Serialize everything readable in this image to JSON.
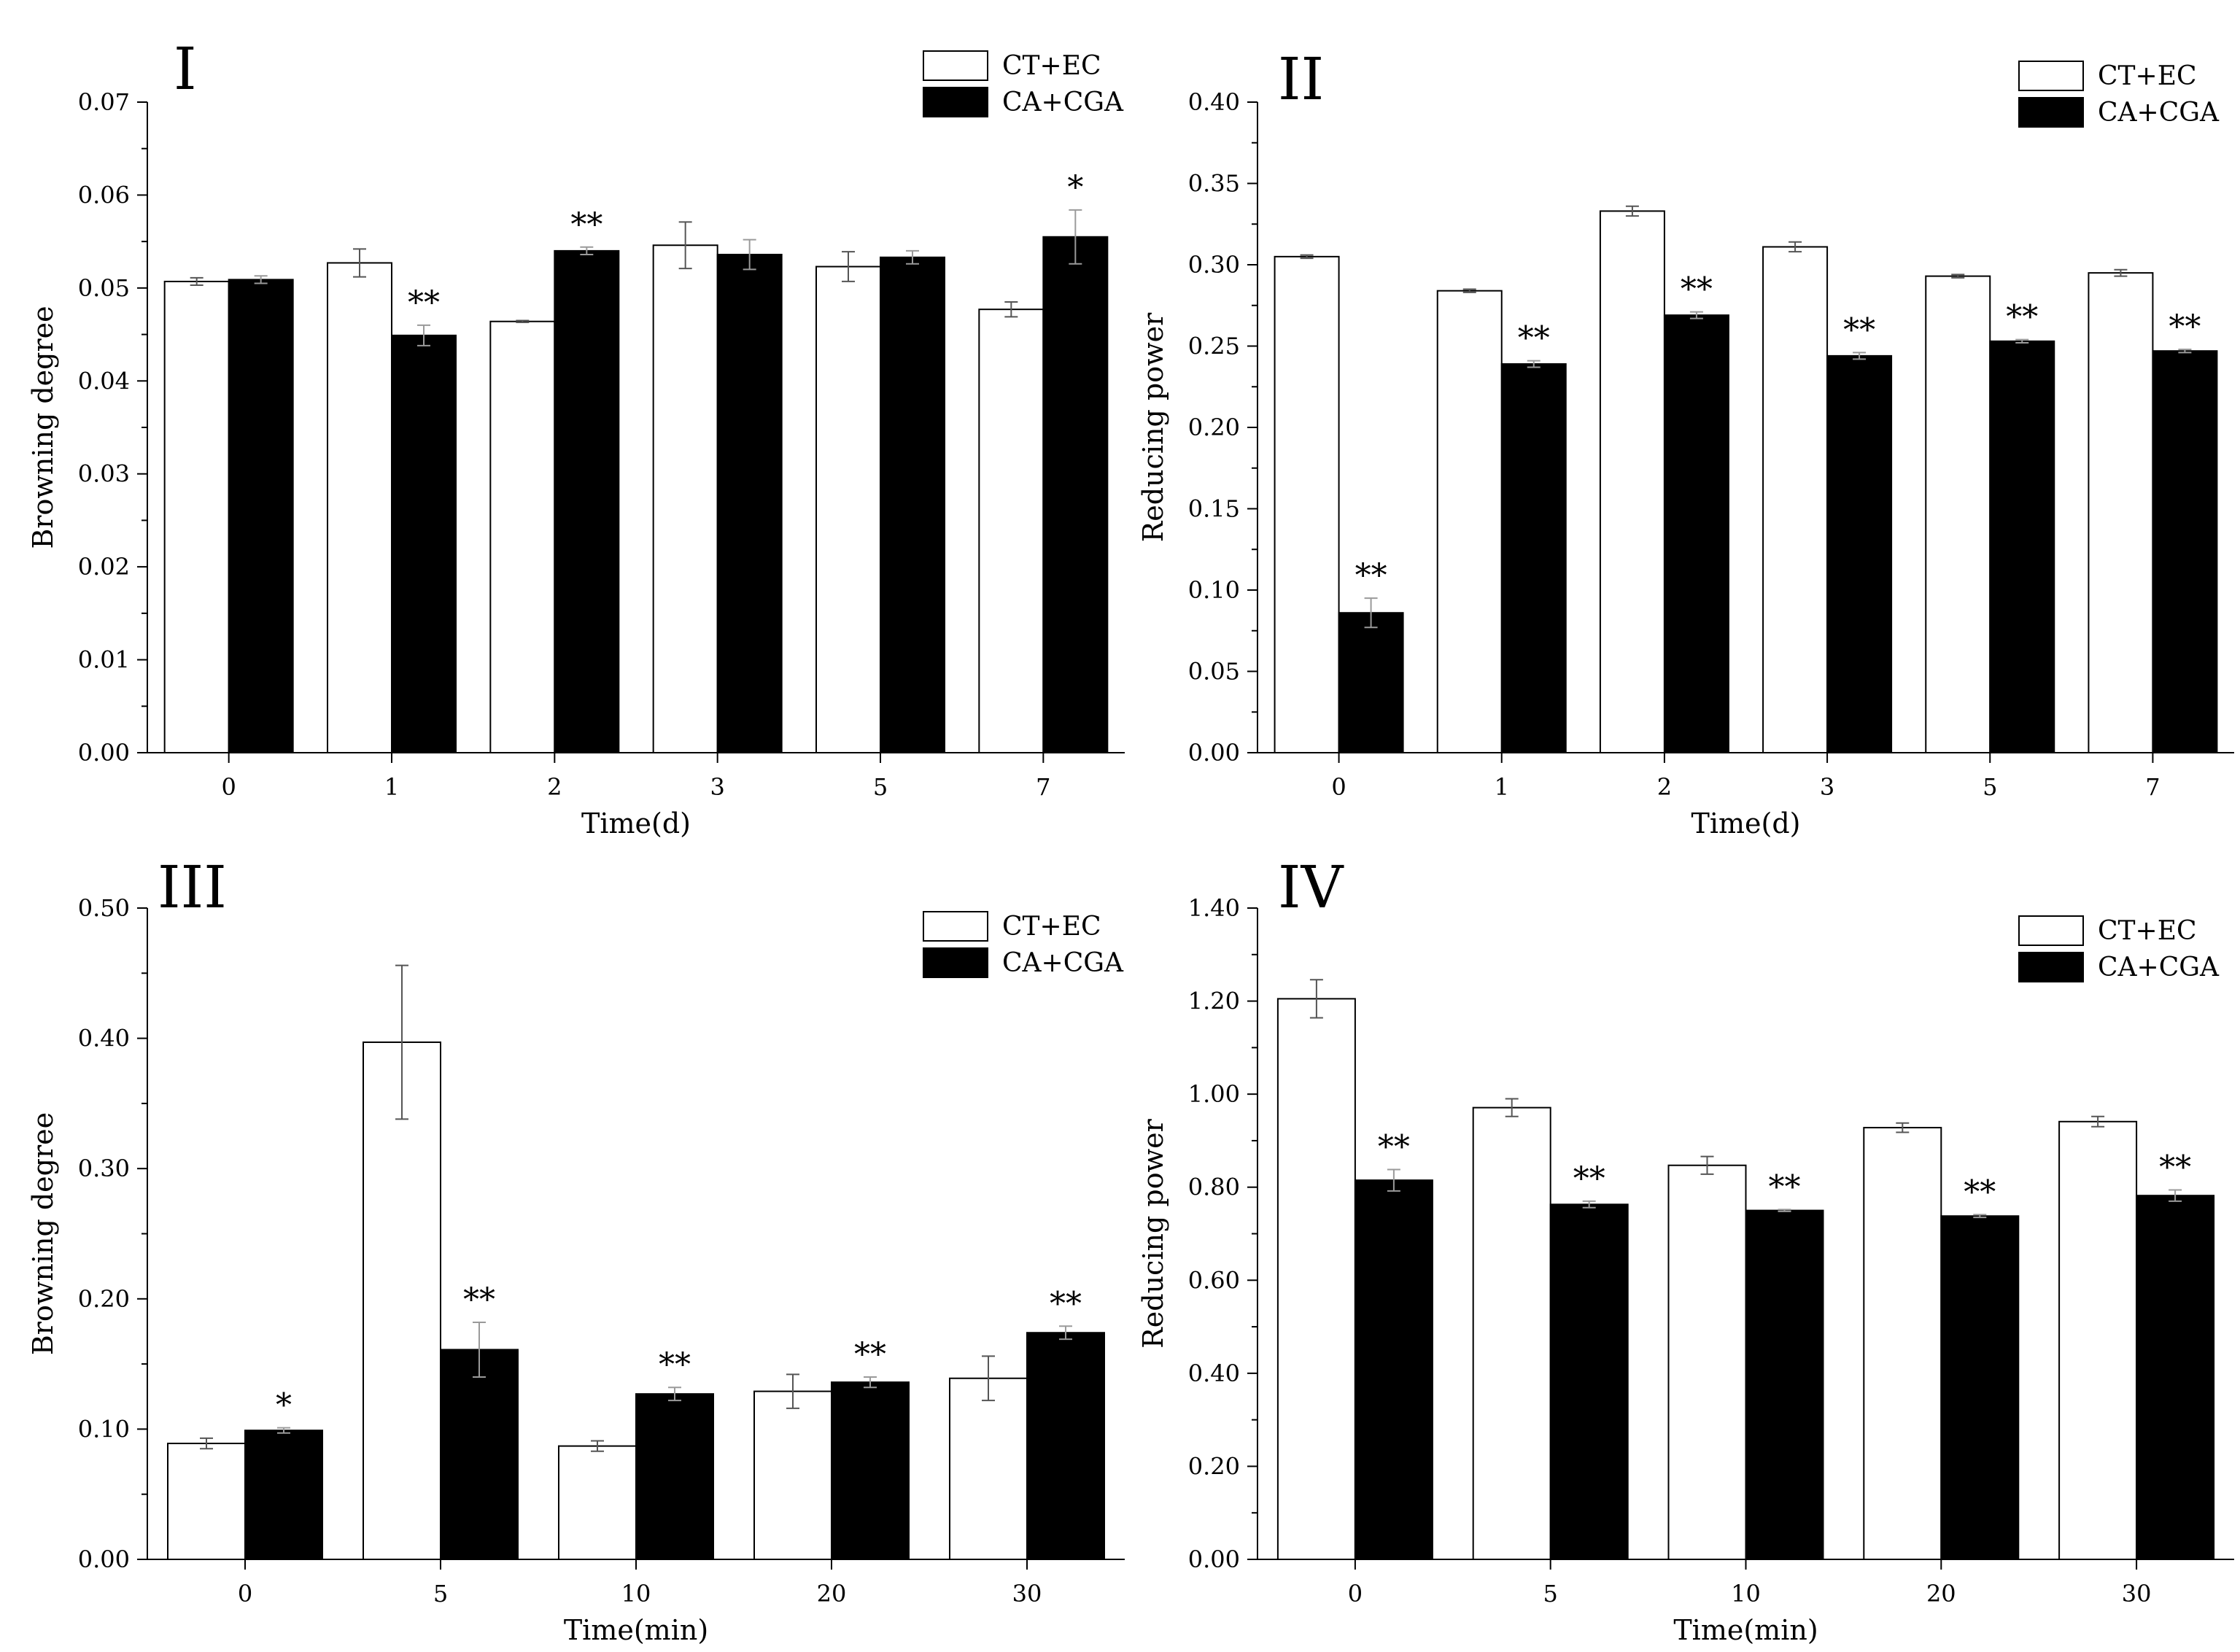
{
  "legend": [
    "CT+EC",
    "CA+CGA"
  ],
  "chart_data": [
    {
      "type": "bar",
      "panel_label": "I",
      "xlabel": "Time(d)",
      "ylabel": "Browning degree",
      "ylim": [
        0,
        0.07
      ],
      "yticks": [
        "0.00",
        "0.01",
        "0.02",
        "0.03",
        "0.04",
        "0.05",
        "0.06",
        "0.07"
      ],
      "categories": [
        "0",
        "1",
        "2",
        "3",
        "5",
        "7"
      ],
      "series": [
        {
          "name": "CT+EC",
          "values": [
            0.0507,
            0.0527,
            0.0464,
            0.0546,
            0.0523,
            0.0477
          ],
          "errors": [
            0.0004,
            0.0015,
            0.0001,
            0.0025,
            0.0016,
            0.0008
          ]
        },
        {
          "name": "CA+CGA",
          "values": [
            0.0509,
            0.0449,
            0.054,
            0.0536,
            0.0533,
            0.0555
          ],
          "errors": [
            0.0004,
            0.0011,
            0.0004,
            0.0016,
            0.0007,
            0.0029
          ]
        }
      ],
      "significance": [
        "",
        "**",
        "**",
        "",
        "",
        "*"
      ]
    },
    {
      "type": "bar",
      "panel_label": "II",
      "xlabel": "Time(d)",
      "ylabel": "Reducing power",
      "ylim": [
        0,
        0.4
      ],
      "yticks": [
        "0.00",
        "0.05",
        "0.10",
        "0.15",
        "0.20",
        "0.25",
        "0.30",
        "0.35",
        "0.40"
      ],
      "categories": [
        "0",
        "1",
        "2",
        "3",
        "5",
        "7"
      ],
      "series": [
        {
          "name": "CT+EC",
          "values": [
            0.305,
            0.284,
            0.333,
            0.311,
            0.293,
            0.295
          ],
          "errors": [
            0.001,
            0.001,
            0.003,
            0.003,
            0.001,
            0.002
          ]
        },
        {
          "name": "CA+CGA",
          "values": [
            0.086,
            0.239,
            0.269,
            0.244,
            0.253,
            0.247
          ],
          "errors": [
            0.009,
            0.002,
            0.002,
            0.002,
            0.001,
            0.001
          ]
        }
      ],
      "significance": [
        "**",
        "**",
        "**",
        "**",
        "**",
        "**"
      ]
    },
    {
      "type": "bar",
      "panel_label": "III",
      "xlabel": "Time(min)",
      "ylabel": "Browning degree",
      "ylim": [
        0,
        0.5
      ],
      "yticks": [
        "0.00",
        "0.10",
        "0.20",
        "0.30",
        "0.40",
        "0.50"
      ],
      "categories": [
        "0",
        "5",
        "10",
        "20",
        "30"
      ],
      "series": [
        {
          "name": "CT+EC",
          "values": [
            0.089,
            0.397,
            0.087,
            0.129,
            0.139
          ],
          "errors": [
            0.004,
            0.059,
            0.004,
            0.013,
            0.017
          ]
        },
        {
          "name": "CA+CGA",
          "values": [
            0.099,
            0.161,
            0.127,
            0.136,
            0.174
          ],
          "errors": [
            0.002,
            0.021,
            0.005,
            0.004,
            0.005
          ]
        }
      ],
      "significance": [
        "*",
        "**",
        "**",
        "**",
        "**"
      ]
    },
    {
      "type": "bar",
      "panel_label": "IV",
      "xlabel": "Time(min)",
      "ylabel": "Reducing power",
      "ylim": [
        0,
        1.4
      ],
      "yticks": [
        "0.00",
        "0.20",
        "0.40",
        "0.60",
        "0.80",
        "1.00",
        "1.20",
        "1.40"
      ],
      "categories": [
        "0",
        "5",
        "10",
        "20",
        "30"
      ],
      "series": [
        {
          "name": "CT+EC",
          "values": [
            1.205,
            0.971,
            0.847,
            0.928,
            0.941
          ],
          "errors": [
            0.041,
            0.019,
            0.019,
            0.01,
            0.011
          ]
        },
        {
          "name": "CA+CGA",
          "values": [
            0.815,
            0.763,
            0.75,
            0.738,
            0.782
          ],
          "errors": [
            0.023,
            0.007,
            0.002,
            0.003,
            0.012
          ]
        }
      ],
      "significance": [
        "**",
        "**",
        "**",
        "**",
        "**"
      ]
    }
  ]
}
